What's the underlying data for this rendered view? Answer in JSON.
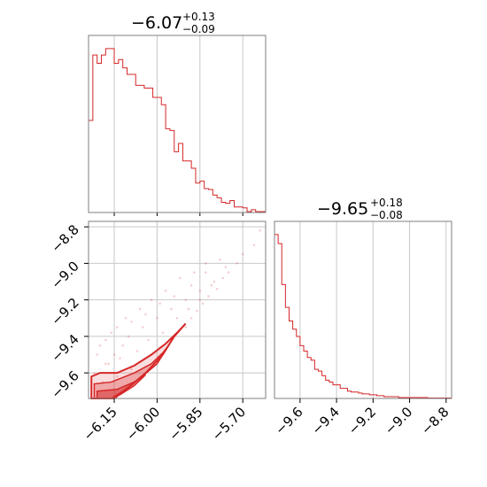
{
  "colors": {
    "series": "#d62728",
    "grid": "#c8c8c8",
    "frame": "#7f7f7f"
  },
  "chart_data": [
    {
      "type": "histogram",
      "panel": "top-left",
      "title": {
        "value": "−6.07",
        "plus": "+0.13",
        "minus": "−0.09"
      },
      "xlim": [
        -6.24,
        -5.62
      ],
      "grid": true,
      "gridlines_x": [
        -6.15,
        -6.0,
        -5.85,
        -5.7
      ],
      "bins": [
        -6.24,
        -6.225,
        -6.21,
        -6.195,
        -6.18,
        -6.165,
        -6.15,
        -6.135,
        -6.12,
        -6.105,
        -6.09,
        -6.075,
        -6.06,
        -6.045,
        -6.03,
        -6.015,
        -6.0,
        -5.985,
        -5.97,
        -5.955,
        -5.94,
        -5.925,
        -5.91,
        -5.895,
        -5.88,
        -5.865,
        -5.85,
        -5.835,
        -5.82,
        -5.805,
        -5.79,
        -5.775,
        -5.76,
        -5.745,
        -5.73,
        -5.715,
        -5.7,
        -5.685,
        -5.67,
        -5.655,
        -5.64,
        -5.62
      ],
      "counts": [
        100,
        171,
        162,
        171,
        178,
        178,
        162,
        166,
        157,
        150,
        150,
        138,
        138,
        135,
        135,
        125,
        125,
        117,
        91,
        89,
        66,
        75,
        56,
        56,
        48,
        32,
        34,
        26,
        25,
        19,
        16,
        11,
        10,
        13,
        6,
        6,
        5,
        1,
        3,
        1,
        1
      ]
    },
    {
      "type": "histogram",
      "panel": "bottom-right",
      "title": {
        "value": "−9.65",
        "plus": "+0.18",
        "minus": "−0.08"
      },
      "xlim": [
        -9.74,
        -8.77
      ],
      "grid": true,
      "gridlines_x": [
        -9.6,
        -9.4,
        -9.2,
        -9.0,
        -8.8
      ],
      "tick_labels": [
        "−9.6",
        "−9.4",
        "−9.2",
        "−9.0",
        "−8.8"
      ],
      "bins": [
        -9.74,
        -9.72,
        -9.7,
        -9.68,
        -9.66,
        -9.64,
        -9.62,
        -9.6,
        -9.58,
        -9.56,
        -9.54,
        -9.52,
        -9.5,
        -9.48,
        -9.46,
        -9.44,
        -9.42,
        -9.4,
        -9.38,
        -9.36,
        -9.34,
        -9.32,
        -9.3,
        -9.28,
        -9.26,
        -9.24,
        -9.22,
        -9.2,
        -9.18,
        -9.16,
        -9.14,
        -9.12,
        -9.1,
        -9.08,
        -9.06,
        -9.04,
        -9.02,
        -9.0,
        -8.98,
        -8.96,
        -8.94,
        -8.92,
        -8.9,
        -8.88,
        -8.86,
        -8.84,
        -8.82,
        -8.8,
        -8.77
      ],
      "counts": [
        180,
        170,
        125,
        100,
        85,
        76,
        68,
        58,
        52,
        45,
        42,
        32,
        30,
        25,
        20,
        18,
        15,
        15,
        11,
        11,
        8,
        7,
        7,
        6,
        5,
        5,
        4,
        4,
        3,
        3,
        2,
        2,
        2,
        2,
        1,
        1,
        1,
        1,
        1,
        1,
        1,
        1,
        0.5,
        0.5,
        0.5,
        0.5,
        0.5,
        0.5
      ]
    },
    {
      "type": "scatter",
      "panel": "bottom-left",
      "xlim": [
        -6.24,
        -5.62
      ],
      "ylim": [
        -9.74,
        -8.77
      ],
      "grid": true,
      "x_tick_labels": [
        "−6.15",
        "−6.00",
        "−5.85",
        "−5.70"
      ],
      "x_ticks": [
        -6.15,
        -6.0,
        -5.85,
        -5.7
      ],
      "y_tick_labels": [
        "−8.8",
        "−9.0",
        "−9.2",
        "−9.4",
        "−9.6"
      ],
      "y_ticks": [
        -8.8,
        -9.0,
        -9.2,
        -9.4,
        -9.6
      ],
      "contour_levels": [
        [
          [
            -6.23,
            -9.74
          ],
          [
            -6.23,
            -9.62
          ],
          [
            -6.2,
            -9.6
          ],
          [
            -6.14,
            -9.6
          ],
          [
            -6.08,
            -9.56
          ],
          [
            -6.02,
            -9.5
          ],
          [
            -5.97,
            -9.44
          ],
          [
            -5.93,
            -9.38
          ],
          [
            -5.9,
            -9.33
          ],
          [
            -5.94,
            -9.4
          ],
          [
            -5.98,
            -9.5
          ],
          [
            -6.04,
            -9.6
          ],
          [
            -6.1,
            -9.68
          ],
          [
            -6.15,
            -9.74
          ]
        ],
        [
          [
            -6.22,
            -9.74
          ],
          [
            -6.22,
            -9.66
          ],
          [
            -6.16,
            -9.65
          ],
          [
            -6.08,
            -9.6
          ],
          [
            -6.02,
            -9.55
          ],
          [
            -5.98,
            -9.49
          ],
          [
            -5.96,
            -9.45
          ],
          [
            -6.0,
            -9.55
          ],
          [
            -6.06,
            -9.63
          ],
          [
            -6.12,
            -9.7
          ],
          [
            -6.16,
            -9.74
          ]
        ],
        [
          [
            -6.21,
            -9.74
          ],
          [
            -6.21,
            -9.7
          ],
          [
            -6.14,
            -9.69
          ],
          [
            -6.08,
            -9.65
          ],
          [
            -6.04,
            -9.61
          ],
          [
            -6.08,
            -9.67
          ],
          [
            -6.13,
            -9.72
          ],
          [
            -6.16,
            -9.74
          ]
        ]
      ],
      "points": [
        [
          -6.22,
          -9.6
        ],
        [
          -6.18,
          -9.55
        ],
        [
          -6.15,
          -9.5
        ],
        [
          -6.12,
          -9.45
        ],
        [
          -6.1,
          -9.4
        ],
        [
          -6.05,
          -9.35
        ],
        [
          -6.0,
          -9.3
        ],
        [
          -5.95,
          -9.25
        ],
        [
          -5.9,
          -9.2
        ],
        [
          -5.85,
          -9.15
        ],
        [
          -5.8,
          -9.1
        ],
        [
          -5.75,
          -9.05
        ],
        [
          -5.72,
          -9.0
        ],
        [
          -5.7,
          -8.95
        ],
        [
          -5.66,
          -8.9
        ],
        [
          -5.64,
          -8.82
        ],
        [
          -6.2,
          -9.45
        ],
        [
          -6.16,
          -9.38
        ],
        [
          -6.11,
          -9.3
        ],
        [
          -6.06,
          -9.25
        ],
        [
          -6.02,
          -9.2
        ],
        [
          -5.97,
          -9.15
        ],
        [
          -5.92,
          -9.08
        ],
        [
          -5.87,
          -9.05
        ],
        [
          -5.83,
          -9.0
        ],
        [
          -5.78,
          -8.98
        ],
        [
          -6.19,
          -9.65
        ],
        [
          -6.14,
          -9.62
        ],
        [
          -6.09,
          -9.58
        ],
        [
          -6.04,
          -9.52
        ],
        [
          -5.99,
          -9.46
        ],
        [
          -5.95,
          -9.42
        ],
        [
          -5.9,
          -9.35
        ],
        [
          -5.88,
          -9.3
        ],
        [
          -5.86,
          -9.26
        ],
        [
          -5.84,
          -9.22
        ],
        [
          -5.82,
          -9.18
        ],
        [
          -5.79,
          -9.14
        ],
        [
          -6.17,
          -9.55
        ],
        [
          -6.13,
          -9.52
        ],
        [
          -6.07,
          -9.48
        ],
        [
          -6.03,
          -9.42
        ],
        [
          -5.98,
          -9.38
        ],
        [
          -5.93,
          -9.3
        ],
        [
          -5.89,
          -9.25
        ],
        [
          -5.85,
          -9.2
        ],
        [
          -5.81,
          -9.12
        ],
        [
          -5.77,
          -9.08
        ],
        [
          -6.21,
          -9.5
        ],
        [
          -6.18,
          -9.42
        ],
        [
          -6.14,
          -9.35
        ],
        [
          -6.09,
          -9.32
        ],
        [
          -6.04,
          -9.28
        ],
        [
          -5.99,
          -9.22
        ],
        [
          -5.94,
          -9.18
        ],
        [
          -5.88,
          -9.12
        ],
        [
          -5.83,
          -9.05
        ],
        [
          -5.76,
          -9.02
        ]
      ]
    }
  ]
}
